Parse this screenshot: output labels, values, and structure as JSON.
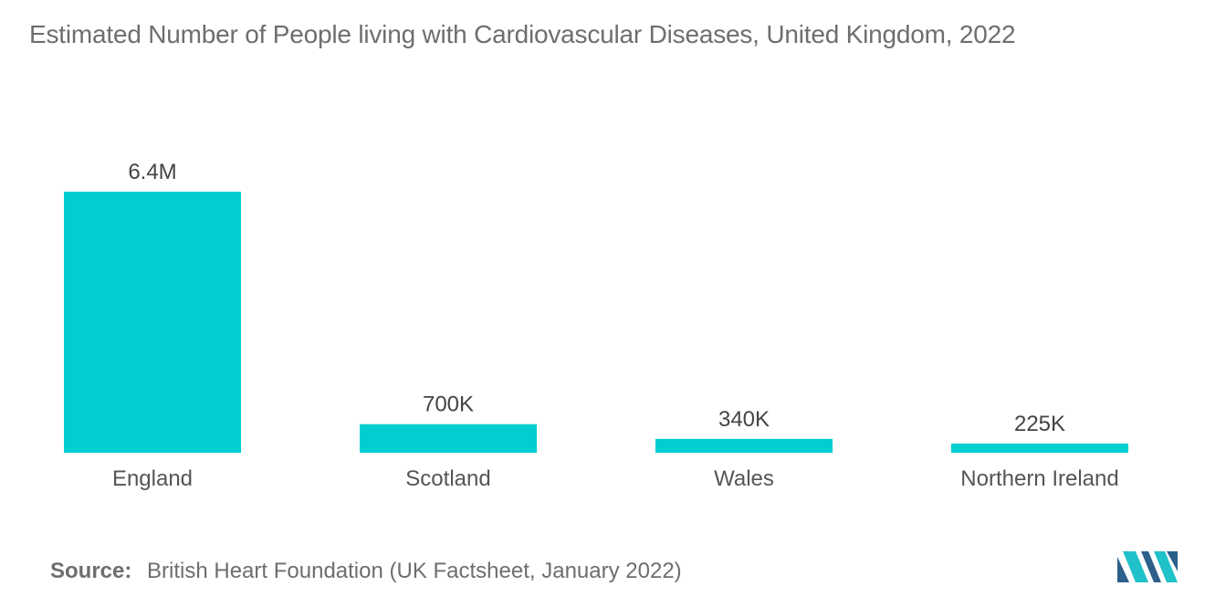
{
  "chart_data": {
    "type": "bar",
    "title": "Estimated Number of People living with Cardiovascular Diseases, United Kingdom, 2022",
    "categories": [
      "England",
      "Scotland",
      "Wales",
      "Northern Ireland"
    ],
    "values": [
      6400000,
      700000,
      340000,
      225000
    ],
    "data_labels": [
      "6.4M",
      "700K",
      "340K",
      "225K"
    ],
    "xlabel": "",
    "ylabel": "",
    "ylim": [
      0,
      6400000
    ],
    "grid": false,
    "legend": "none",
    "bar_color": "#00ced1"
  },
  "source": {
    "label": "Source:",
    "text": "British Heart Foundation (UK Factsheet, January 2022)"
  },
  "logo": {
    "icon": "mordor-intelligence-logo-icon",
    "colors": [
      "#2c5f8a",
      "#20c1c9"
    ]
  }
}
